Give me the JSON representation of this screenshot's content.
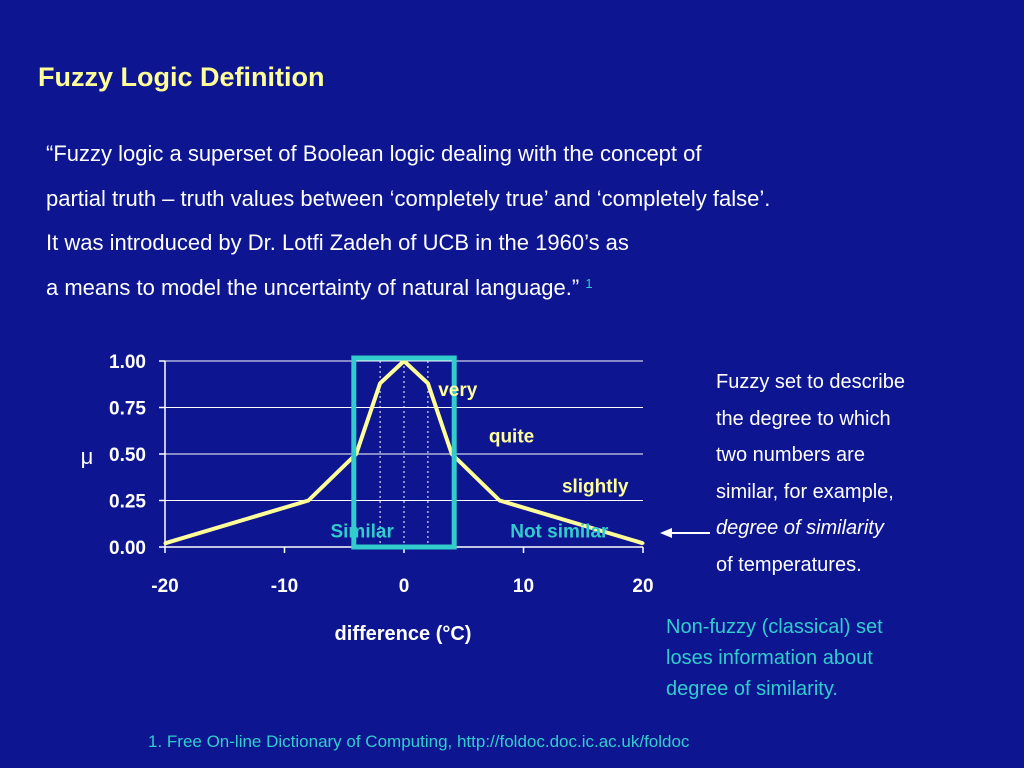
{
  "slide": {
    "title": "Fuzzy Logic Definition",
    "quote_lines": [
      "“Fuzzy logic a superset of Boolean logic dealing with the concept of",
      "partial truth – truth values between ‘completely true’ and ‘completely false’.",
      "It was introduced by Dr. Lotfi Zadeh of UCB in the 1960’s as",
      "a means to model the uncertainty of natural language.”"
    ],
    "quote_footnote_marker": "1",
    "description_lines": [
      "Fuzzy set to describe",
      "the degree to which",
      "two numbers are",
      "similar, for example,"
    ],
    "description_emphasis": "degree of similarity",
    "description_last": "of temperatures.",
    "arrow_icon": "left-arrow-icon",
    "note_lines": [
      "Non-fuzzy (classical) set",
      "loses information about",
      "degree of similarity."
    ],
    "footnote": "1. Free On-line Dictionary of Computing, http://foldoc.doc.ic.ac.uk/foldoc"
  },
  "colors": {
    "background": "#0d1591",
    "title": "#ffff99",
    "text": "#ffffff",
    "accent": "#33cccc",
    "curve": "#ffff99"
  },
  "chart_data": {
    "type": "line",
    "x": [
      -20,
      -8,
      -4,
      -2,
      0,
      2,
      4,
      8,
      20
    ],
    "series": [
      {
        "values": [
          0.02,
          0.25,
          0.5,
          0.88,
          1.0,
          0.88,
          0.5,
          0.25,
          0.02
        ]
      }
    ],
    "xlabel": "difference (°C)",
    "ylabel": "μ",
    "xlim": [
      -20,
      20
    ],
    "ylim": [
      0,
      1
    ],
    "xticks": [
      -20,
      -10,
      0,
      10,
      20
    ],
    "xtick_labels": [
      "-20",
      "-10",
      "0",
      "10",
      "20"
    ],
    "yticks": [
      0,
      0.25,
      0.5,
      0.75,
      1.0
    ],
    "ytick_labels": [
      "0.00",
      "0.25",
      "0.50",
      "0.75",
      "1.00"
    ],
    "grid": "horizontal",
    "dotted_guides_x": [
      -2,
      0,
      2
    ],
    "crisp_set": {
      "x_range": [
        -4.2,
        4.2
      ],
      "y_range": [
        0,
        1
      ]
    },
    "annotations": [
      {
        "text": "very",
        "x": 4.5,
        "y": 0.85
      },
      {
        "text": "quite",
        "x": 9,
        "y": 0.6
      },
      {
        "text": "slightly",
        "x": 16,
        "y": 0.33
      },
      {
        "text": "Similar",
        "x": -3.5,
        "y": 0.09
      },
      {
        "text": "Not similar",
        "x": 13,
        "y": 0.09
      }
    ]
  }
}
